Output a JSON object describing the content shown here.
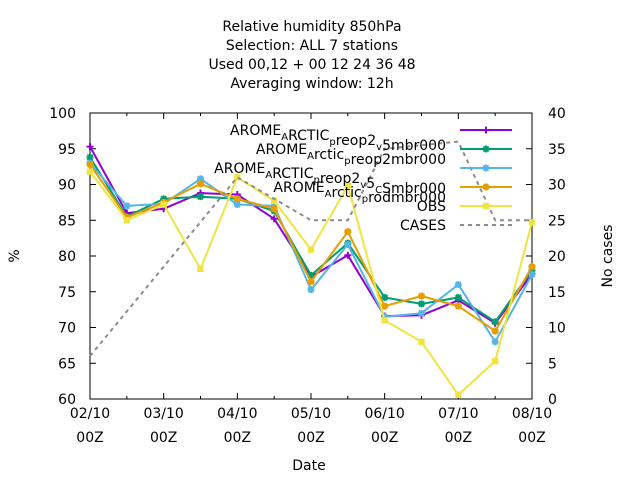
{
  "chart_data": {
    "type": "line",
    "title_lines": [
      "Relative humidity 850hPa",
      "Selection: ALL      7 stations",
      "Used  00,12  + 00 12 24 36 48",
      "Averaging window: 12h"
    ],
    "xlabel": "Date",
    "ylabel": "%",
    "y2label": "No cases",
    "ylim": [
      60,
      100
    ],
    "y2lim": [
      0,
      40
    ],
    "yticks": [
      "60",
      "65",
      "70",
      "75",
      "80",
      "85",
      "90",
      "95",
      "100"
    ],
    "y2ticks": [
      "0",
      "5",
      "10",
      "15",
      "20",
      "25",
      "30",
      "35",
      "40"
    ],
    "xticks": [
      {
        "date": "02/10",
        "time": "00Z"
      },
      {
        "date": "03/10",
        "time": "00Z"
      },
      {
        "date": "04/10",
        "time": "00Z"
      },
      {
        "date": "05/10",
        "time": "00Z"
      },
      {
        "date": "06/10",
        "time": "00Z"
      },
      {
        "date": "07/10",
        "time": "00Z"
      },
      {
        "date": "08/10",
        "time": "00Z"
      }
    ],
    "x": [
      "02/10 00Z",
      "02/10 12Z",
      "03/10 00Z",
      "03/10 12Z",
      "04/10 00Z",
      "04/10 12Z",
      "05/10 00Z",
      "05/10 12Z",
      "06/10 00Z",
      "06/10 12Z",
      "07/10 00Z",
      "07/10 12Z",
      "08/10 00Z"
    ],
    "legend_position": "top-right",
    "series": [
      {
        "name": "AROME_ARCTIC_preop2_v_5mbr000",
        "legend_parts": [
          [
            "AROME",
            ""
          ],
          [
            "A",
            "sub"
          ],
          [
            "RCTIC",
            ""
          ],
          [
            "p",
            "sub"
          ],
          [
            "reop2",
            ""
          ],
          [
            "v",
            "sub"
          ],
          [
            "5mbr000",
            ""
          ]
        ],
        "color": "#9400d3",
        "marker": "plus",
        "axis": "y",
        "values": [
          95.3,
          86.0,
          86.6,
          88.8,
          88.6,
          85.2,
          77.1,
          80.1,
          71.6,
          71.7,
          73.8,
          70.6,
          77.5
        ]
      },
      {
        "name": "AROME_Arctic_preop2mbr000",
        "legend_parts": [
          [
            "AROME",
            ""
          ],
          [
            "A",
            "sub"
          ],
          [
            "rctic",
            ""
          ],
          [
            "p",
            "sub"
          ],
          [
            "reop2mbr000",
            ""
          ]
        ],
        "color": "#009e73",
        "marker": "star",
        "axis": "y",
        "values": [
          93.8,
          85.5,
          88.0,
          88.3,
          88.0,
          86.3,
          77.3,
          81.8,
          74.2,
          73.3,
          74.2,
          70.8,
          78.0
        ]
      },
      {
        "name": "AROME_ARCTIC_preop2_v_5_C_Smbr000",
        "legend_parts": [
          [
            "AROME",
            ""
          ],
          [
            "A",
            "sub"
          ],
          [
            "RCTIC",
            ""
          ],
          [
            "p",
            "sub"
          ],
          [
            "reop2",
            ""
          ],
          [
            "v",
            "sub"
          ],
          [
            "5",
            ""
          ],
          [
            "C",
            "sub"
          ],
          [
            "Smbr000",
            ""
          ]
        ],
        "color": "#56b4e9",
        "marker": "star",
        "axis": "y",
        "values": [
          93.0,
          87.0,
          87.3,
          90.8,
          87.2,
          87.0,
          75.3,
          81.6,
          71.5,
          72.0,
          76.0,
          68.0,
          77.4
        ]
      },
      {
        "name": "AROME_Arctic_prodmbr000",
        "legend_parts": [
          [
            "AROME",
            ""
          ],
          [
            "A",
            "sub"
          ],
          [
            "rctic",
            ""
          ],
          [
            "p",
            "sub"
          ],
          [
            "rodmbr000",
            ""
          ]
        ],
        "color": "#e69f00",
        "marker": "circle",
        "axis": "y",
        "values": [
          92.8,
          85.4,
          87.5,
          90.1,
          88.0,
          86.6,
          76.4,
          83.4,
          73.0,
          74.4,
          73.0,
          69.5,
          78.5
        ]
      },
      {
        "name": "OBS",
        "legend_parts": [
          [
            "OBS",
            ""
          ]
        ],
        "color": "#f0e442",
        "marker": "square",
        "axis": "y",
        "values": [
          91.8,
          85.0,
          87.2,
          78.2,
          91.0,
          87.7,
          80.9,
          89.8,
          71.0,
          68.0,
          60.6,
          65.3,
          84.7
        ]
      },
      {
        "name": "CASES",
        "legend_parts": [
          [
            "CASES",
            ""
          ]
        ],
        "color": "#8c8c8c",
        "marker": "none",
        "dashed": true,
        "axis": "y2",
        "values": [
          6,
          null,
          null,
          null,
          31,
          null,
          25,
          25,
          35,
          null,
          36,
          25,
          25
        ]
      }
    ]
  }
}
